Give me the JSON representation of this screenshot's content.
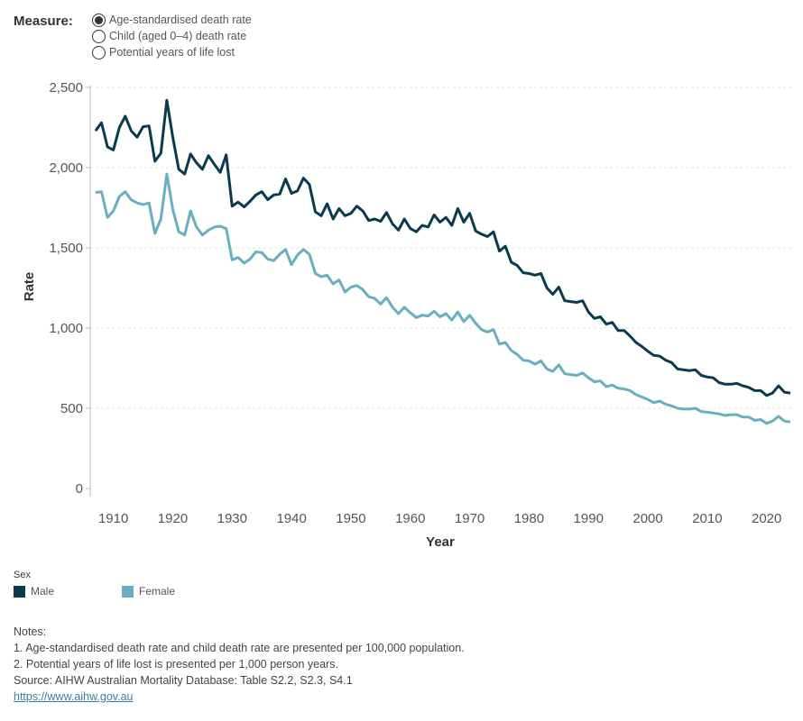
{
  "filter": {
    "label": "Measure:",
    "options": [
      {
        "label": "Age-standardised death rate",
        "selected": true
      },
      {
        "label": "Child (aged 0–4) death rate",
        "selected": false
      },
      {
        "label": "Potential years of life lost",
        "selected": false
      }
    ]
  },
  "legend": {
    "title": "Sex",
    "items": [
      {
        "label": "Male",
        "color": "#0b3a4f"
      },
      {
        "label": "Female",
        "color": "#6aaec0"
      }
    ]
  },
  "notes": {
    "heading": "Notes:",
    "lines": [
      "1. Age-standardised death rate and child death rate are presented per 100,000 population.",
      "2. Potential years of life lost is presented per 1,000 person years."
    ],
    "source": "Source: AIHW Australian Mortality Database: Table S2.2, S2.3, S4.1",
    "link": "https://www.aihw.gov.au"
  },
  "chart_data": {
    "type": "line",
    "title": "",
    "xlabel": "Year",
    "ylabel": "Rate",
    "xlim": [
      1907,
      2023
    ],
    "ylim": [
      0,
      2500
    ],
    "xticks": [
      1910,
      1920,
      1930,
      1940,
      1950,
      1960,
      1970,
      1980,
      1990,
      2000,
      2010,
      2020
    ],
    "yticks": [
      0,
      500,
      1000,
      1500,
      2000,
      2500
    ],
    "ytick_labels": [
      "0",
      "500",
      "1,000",
      "1,500",
      "2,000",
      "2,500"
    ],
    "grid": true,
    "legend_position": "bottom-left",
    "x_start": 1907,
    "series": [
      {
        "name": "Male",
        "color": "#0b3a4f",
        "values": [
          2230,
          2280,
          2130,
          2110,
          2250,
          2320,
          2230,
          2190,
          2255,
          2260,
          2040,
          2090,
          2420,
          2190,
          1990,
          1960,
          2085,
          2030,
          1990,
          2075,
          2020,
          1970,
          2080,
          1760,
          1785,
          1755,
          1790,
          1830,
          1850,
          1800,
          1830,
          1835,
          1930,
          1840,
          1855,
          1935,
          1895,
          1725,
          1700,
          1775,
          1680,
          1745,
          1700,
          1715,
          1760,
          1730,
          1670,
          1680,
          1665,
          1720,
          1650,
          1610,
          1680,
          1620,
          1600,
          1640,
          1630,
          1705,
          1660,
          1690,
          1640,
          1745,
          1660,
          1715,
          1605,
          1585,
          1570,
          1600,
          1480,
          1510,
          1410,
          1390,
          1345,
          1340,
          1330,
          1340,
          1250,
          1210,
          1255,
          1170,
          1165,
          1160,
          1170,
          1100,
          1060,
          1070,
          1025,
          1035,
          985,
          985,
          950,
          910,
          885,
          855,
          830,
          825,
          800,
          785,
          745,
          740,
          735,
          740,
          705,
          695,
          690,
          660,
          650,
          650,
          655,
          640,
          630,
          610,
          610,
          580,
          595,
          640,
          600,
          595
        ]
      },
      {
        "name": "Female",
        "color": "#6aaec0",
        "values": [
          1845,
          1850,
          1690,
          1730,
          1820,
          1850,
          1800,
          1780,
          1770,
          1780,
          1590,
          1680,
          1960,
          1740,
          1600,
          1580,
          1730,
          1630,
          1580,
          1610,
          1630,
          1635,
          1620,
          1425,
          1440,
          1405,
          1430,
          1475,
          1470,
          1430,
          1420,
          1460,
          1490,
          1395,
          1455,
          1490,
          1460,
          1340,
          1320,
          1330,
          1275,
          1300,
          1225,
          1255,
          1265,
          1240,
          1195,
          1185,
          1150,
          1190,
          1130,
          1090,
          1130,
          1095,
          1065,
          1080,
          1075,
          1105,
          1070,
          1090,
          1050,
          1100,
          1040,
          1080,
          1030,
          990,
          975,
          990,
          900,
          910,
          860,
          835,
          800,
          795,
          775,
          795,
          745,
          730,
          770,
          715,
          710,
          705,
          720,
          690,
          665,
          670,
          635,
          645,
          625,
          620,
          610,
          585,
          570,
          555,
          535,
          545,
          525,
          515,
          500,
          495,
          495,
          500,
          480,
          475,
          470,
          465,
          455,
          460,
          460,
          445,
          445,
          425,
          430,
          405,
          420,
          450,
          420,
          415
        ]
      }
    ]
  }
}
